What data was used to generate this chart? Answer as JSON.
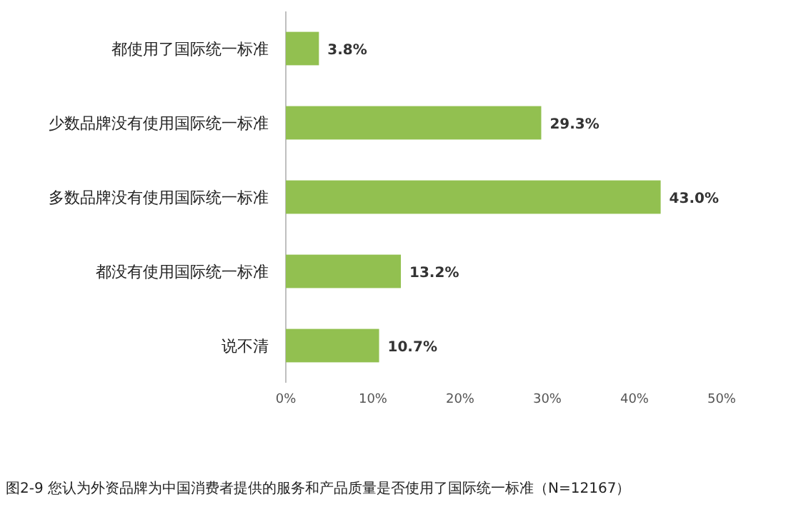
{
  "chart_data": {
    "type": "bar",
    "orientation": "horizontal",
    "categories": [
      "都使用了国际统一标准",
      "少数品牌没有使用国际统一标准",
      "多数品牌没有使用国际统一标准",
      "都没有使用国际统一标准",
      "说不清"
    ],
    "values": [
      3.8,
      29.3,
      43.0,
      13.2,
      10.7
    ],
    "value_labels": [
      "3.8%",
      "29.3%",
      "43.0%",
      "13.2%",
      "10.7%"
    ],
    "color": "#92c050",
    "xlim": [
      0,
      50
    ],
    "xticks": [
      {
        "value": 0,
        "label": "0%"
      },
      {
        "value": 10,
        "label": "10%"
      },
      {
        "value": 20,
        "label": "20%"
      },
      {
        "value": 30,
        "label": "30%"
      },
      {
        "value": 40,
        "label": "40%"
      },
      {
        "value": 50,
        "label": "50%"
      }
    ],
    "annotations": [
      "图2-9 您认为外资品牌为中国消费者提供的服务和产品质量是否使用了国际统一标准（N=12167）"
    ]
  }
}
